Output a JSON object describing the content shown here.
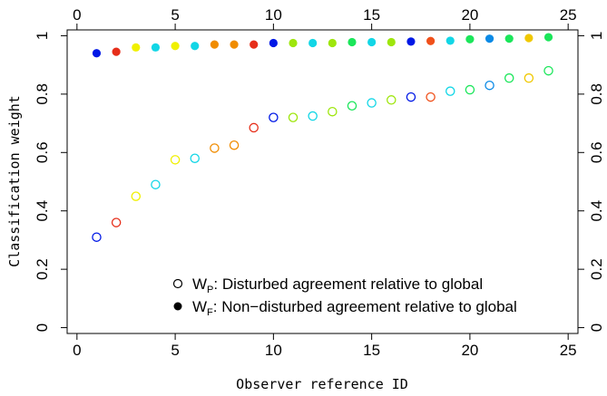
{
  "chart_data": {
    "type": "scatter",
    "title": "",
    "xlabel": "Observer reference ID",
    "ylabel": "Classification weight",
    "xlim": [
      -0.5,
      25.5
    ],
    "ylim": [
      -0.02,
      1.02
    ],
    "x_ticks": [
      0,
      5,
      10,
      15,
      20,
      25
    ],
    "x_tick_labels": [
      "0",
      "5",
      "10",
      "15",
      "20",
      "25"
    ],
    "y_ticks": [
      0,
      0.2,
      0.4,
      0.6,
      0.8,
      1
    ],
    "y_tick_labels": [
      "0",
      "0.2",
      "0.4",
      "0.6",
      "0.8",
      "1"
    ],
    "grid": false,
    "legend_position": "bottom-right",
    "legend": {
      "wp": {
        "main": "W",
        "sub": "P",
        "desc": ": Disturbed agreement relative to global"
      },
      "wf": {
        "main": "W",
        "sub": "F",
        "desc": ": Non−disturbed agreement relative to global"
      }
    },
    "point_colors": [
      "#0018e6",
      "#e62e1a",
      "#f0f000",
      "#12d6e6",
      "#f0f000",
      "#12d6e6",
      "#f08c00",
      "#f08c00",
      "#e62e1a",
      "#0018e6",
      "#9ee60c",
      "#12d6e6",
      "#9ee60c",
      "#1be65a",
      "#12d6e6",
      "#9ee60c",
      "#0018e6",
      "#f0501a",
      "#12d6e6",
      "#1be65a",
      "#0a8ae6",
      "#1be65a",
      "#f0c800",
      "#1be65a"
    ],
    "series": [
      {
        "marker": "open-circle",
        "x": [
          1,
          2,
          3,
          4,
          5,
          6,
          7,
          8,
          9,
          10,
          11,
          12,
          13,
          14,
          15,
          16,
          17,
          18,
          19,
          20,
          21,
          22,
          23,
          24
        ],
        "y": [
          0.31,
          0.36,
          0.45,
          0.49,
          0.575,
          0.58,
          0.615,
          0.625,
          0.685,
          0.72,
          0.72,
          0.725,
          0.74,
          0.76,
          0.77,
          0.78,
          0.79,
          0.79,
          0.81,
          0.815,
          0.83,
          0.855,
          0.855,
          0.88
        ]
      },
      {
        "marker": "filled-circle",
        "x": [
          1,
          2,
          3,
          4,
          5,
          6,
          7,
          8,
          9,
          10,
          11,
          12,
          13,
          14,
          15,
          16,
          17,
          18,
          19,
          20,
          21,
          22,
          23,
          24
        ],
        "y": [
          0.94,
          0.945,
          0.96,
          0.96,
          0.965,
          0.965,
          0.97,
          0.97,
          0.97,
          0.975,
          0.975,
          0.975,
          0.975,
          0.978,
          0.978,
          0.978,
          0.98,
          0.982,
          0.983,
          0.988,
          0.99,
          0.99,
          0.992,
          0.995
        ]
      }
    ]
  }
}
